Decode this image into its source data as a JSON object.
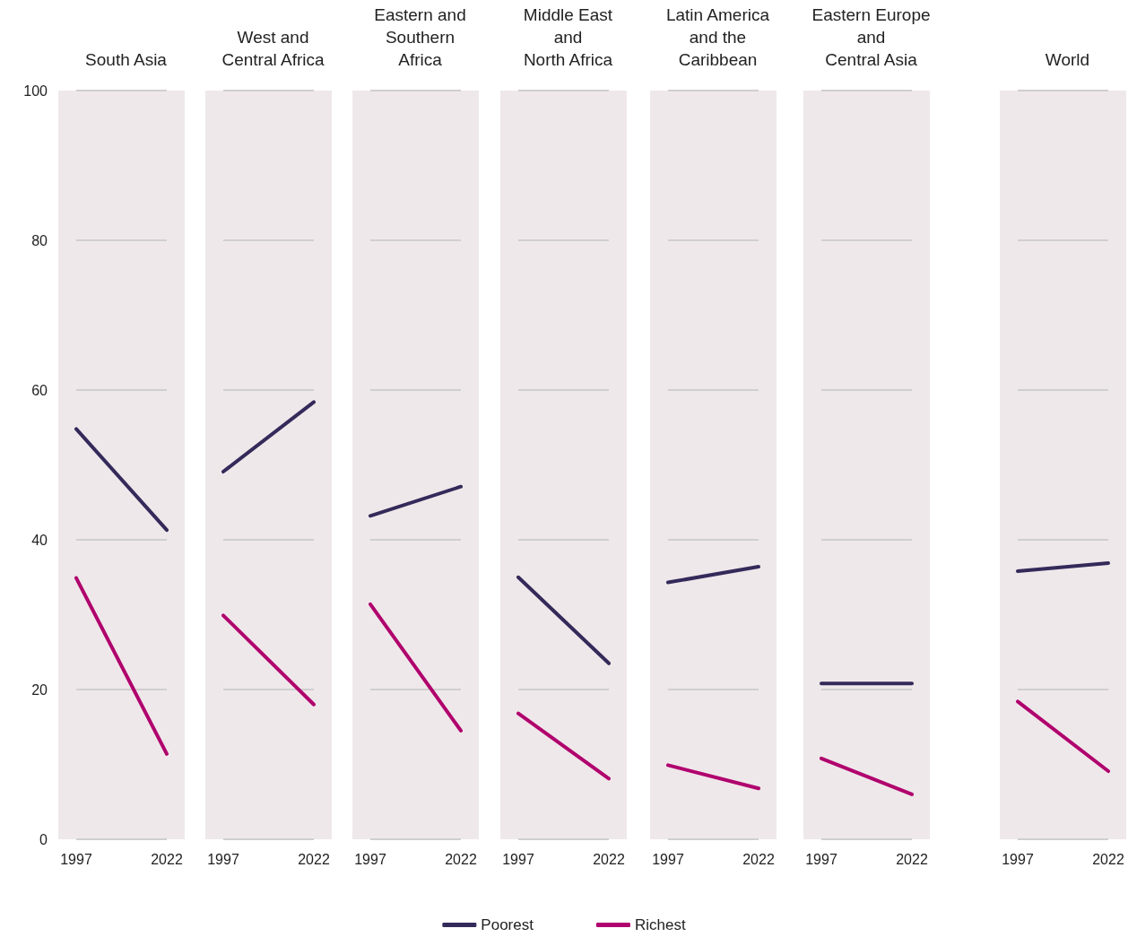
{
  "chart_data": [
    {
      "type": "line",
      "title": "South Asia",
      "categories": [
        "1997",
        "2022"
      ],
      "ylim": [
        0,
        100
      ],
      "yticks": [
        0,
        20,
        40,
        60,
        80,
        100
      ],
      "grid": "y",
      "marker": "none",
      "series": [
        {
          "color": "#342a5a",
          "values": [
            54.8,
            41.3
          ]
        },
        {
          "color": "#b0006d",
          "values": [
            34.9,
            11.4
          ]
        }
      ]
    },
    {
      "type": "line",
      "title": "West and\nCentral Africa",
      "categories": [
        "1997",
        "2022"
      ],
      "ylim": [
        0,
        100
      ],
      "yticks": [
        0,
        20,
        40,
        60,
        80,
        100
      ],
      "grid": "y",
      "marker": "none",
      "tick_labels": "x",
      "series": [
        {
          "color": "#342a5a",
          "values": [
            49.1,
            58.4
          ]
        },
        {
          "color": "#b0006d",
          "values": [
            29.9,
            18.0
          ]
        }
      ]
    },
    {
      "type": "line",
      "title": "Eastern and\nSouthern\nAfrica",
      "categories": [
        "1997",
        "2022"
      ],
      "ylim": [
        0,
        100
      ],
      "yticks": [
        0,
        20,
        40,
        60,
        80,
        100
      ],
      "grid": "y",
      "marker": "none",
      "tick_labels": "x",
      "series": [
        {
          "color": "#342a5a",
          "values": [
            43.2,
            47.1
          ]
        },
        {
          "color": "#b0006d",
          "values": [
            31.4,
            14.5
          ]
        }
      ]
    },
    {
      "type": "line",
      "title": "Middle East\nand\nNorth Africa",
      "categories": [
        "1997",
        "2022"
      ],
      "ylim": [
        0,
        100
      ],
      "yticks": [
        0,
        20,
        40,
        60,
        80,
        100
      ],
      "grid": "y",
      "marker": "none",
      "tick_labels": "x",
      "legend": "bottom",
      "series": [
        {
          "name": "Poorest",
          "color": "#342a5a",
          "values": [
            35.0,
            23.5
          ]
        },
        {
          "name": "Richest",
          "color": "#b0006d",
          "values": [
            16.8,
            8.1
          ]
        }
      ]
    },
    {
      "type": "line",
      "title": "Latin America\nand the\nCaribbean",
      "categories": [
        "1997",
        "2022"
      ],
      "ylim": [
        0,
        100
      ],
      "yticks": [
        0,
        20,
        40,
        60,
        80,
        100
      ],
      "grid": "y",
      "marker": "none",
      "tick_labels": "x",
      "series": [
        {
          "color": "#342a5a",
          "values": [
            34.3,
            36.4
          ]
        },
        {
          "color": "#b0006d",
          "values": [
            9.9,
            6.8
          ]
        }
      ]
    },
    {
      "type": "line",
      "title": "Eastern Europe\nand\nCentral Asia",
      "categories": [
        "1997",
        "2022"
      ],
      "ylim": [
        0,
        100
      ],
      "yticks": [
        0,
        20,
        40,
        60,
        80,
        100
      ],
      "grid": "y",
      "marker": "none",
      "tick_labels": "x",
      "series": [
        {
          "color": "#342a5a",
          "values": [
            20.8,
            20.8
          ]
        },
        {
          "color": "#b0006d",
          "values": [
            10.8,
            6.0
          ]
        }
      ]
    },
    {
      "type": "line",
      "title": "World",
      "categories": [
        "1997",
        "2022"
      ],
      "ylim": [
        0,
        100
      ],
      "yticks": [
        0,
        20,
        40,
        60,
        80,
        100
      ],
      "grid": "y",
      "marker": "none",
      "tick_labels": "x",
      "series": [
        {
          "color": "#342a5a",
          "values": [
            35.8,
            36.9
          ]
        },
        {
          "color": "#b0006d",
          "values": [
            18.4,
            9.1
          ]
        }
      ]
    }
  ]
}
